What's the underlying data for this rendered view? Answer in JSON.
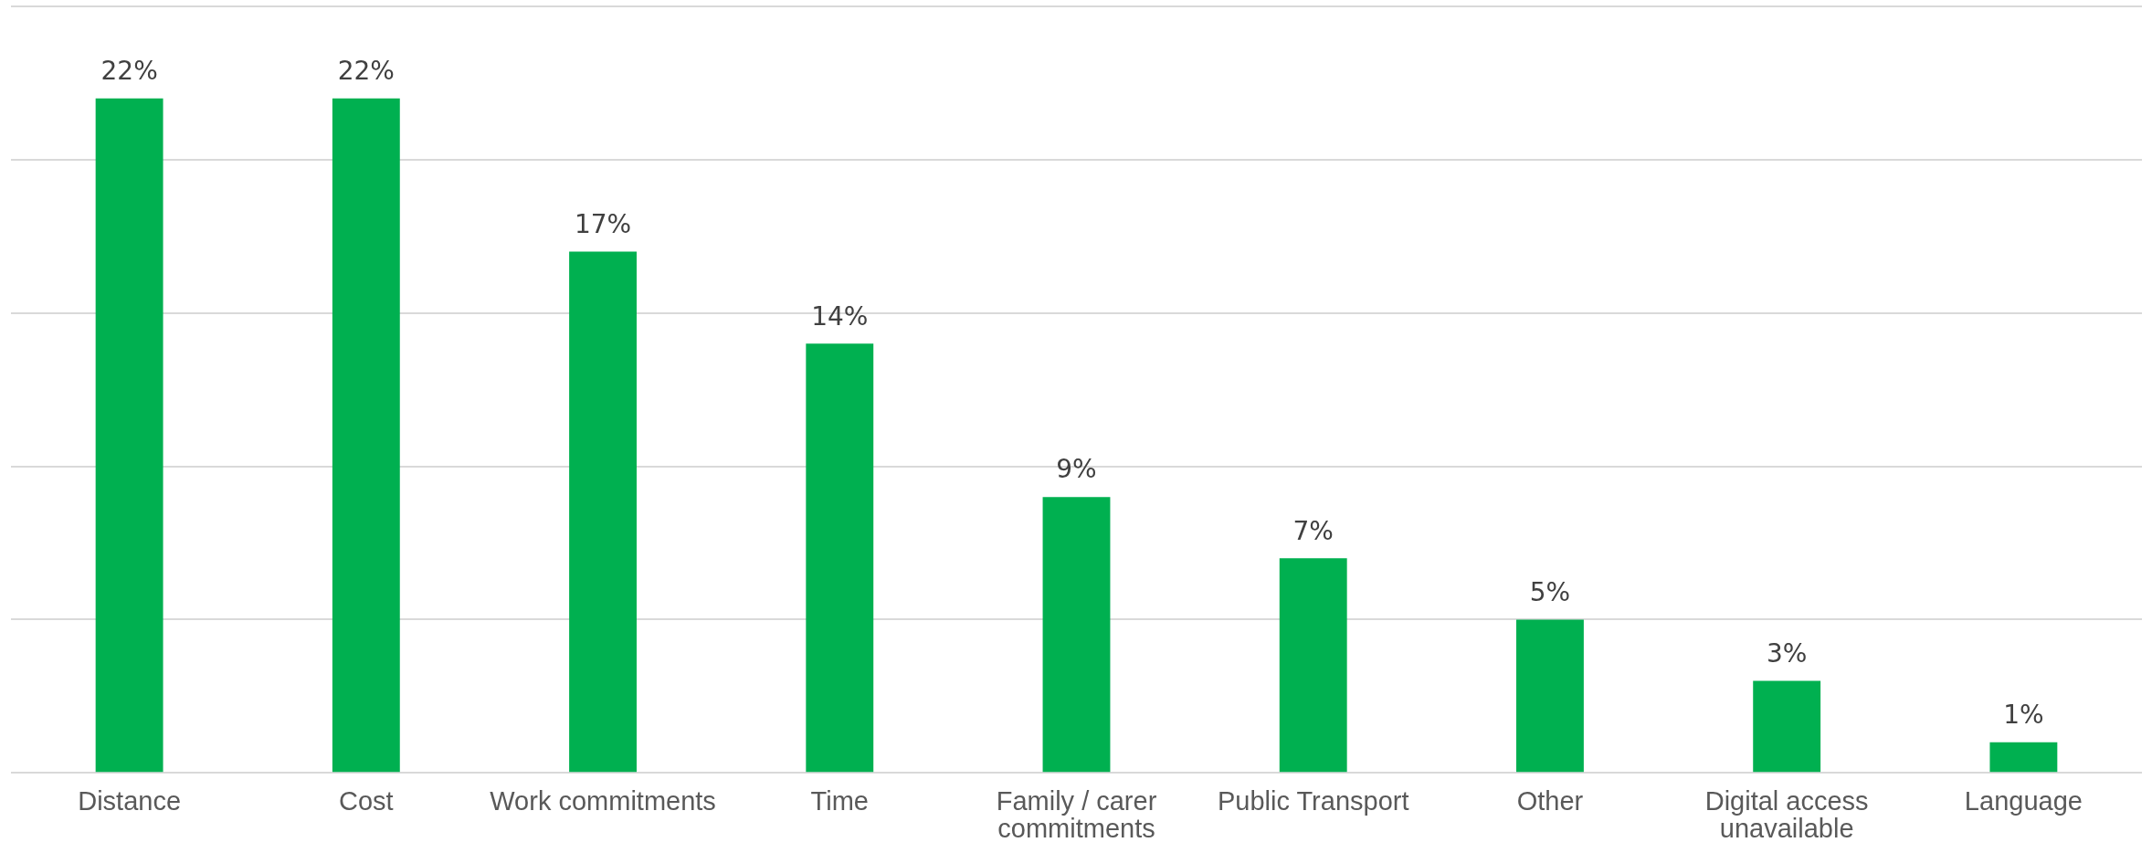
{
  "chart_data": {
    "type": "bar",
    "categories": [
      "Distance",
      "Cost",
      "Work commitments",
      "Time",
      "Family / carer commitments",
      "Public Transport",
      "Other",
      "Digital access unavailable",
      "Language"
    ],
    "values": [
      22,
      22,
      17,
      14,
      9,
      7,
      5,
      3,
      1
    ],
    "value_labels": [
      "22%",
      "22%",
      "17%",
      "14%",
      "9%",
      "7%",
      "5%",
      "3%",
      "1%"
    ],
    "color": "#00b050",
    "ylim": [
      0,
      25
    ],
    "yticks": [
      0,
      5,
      10,
      15,
      20,
      25
    ],
    "grid": "y",
    "tick_labels": "x"
  }
}
